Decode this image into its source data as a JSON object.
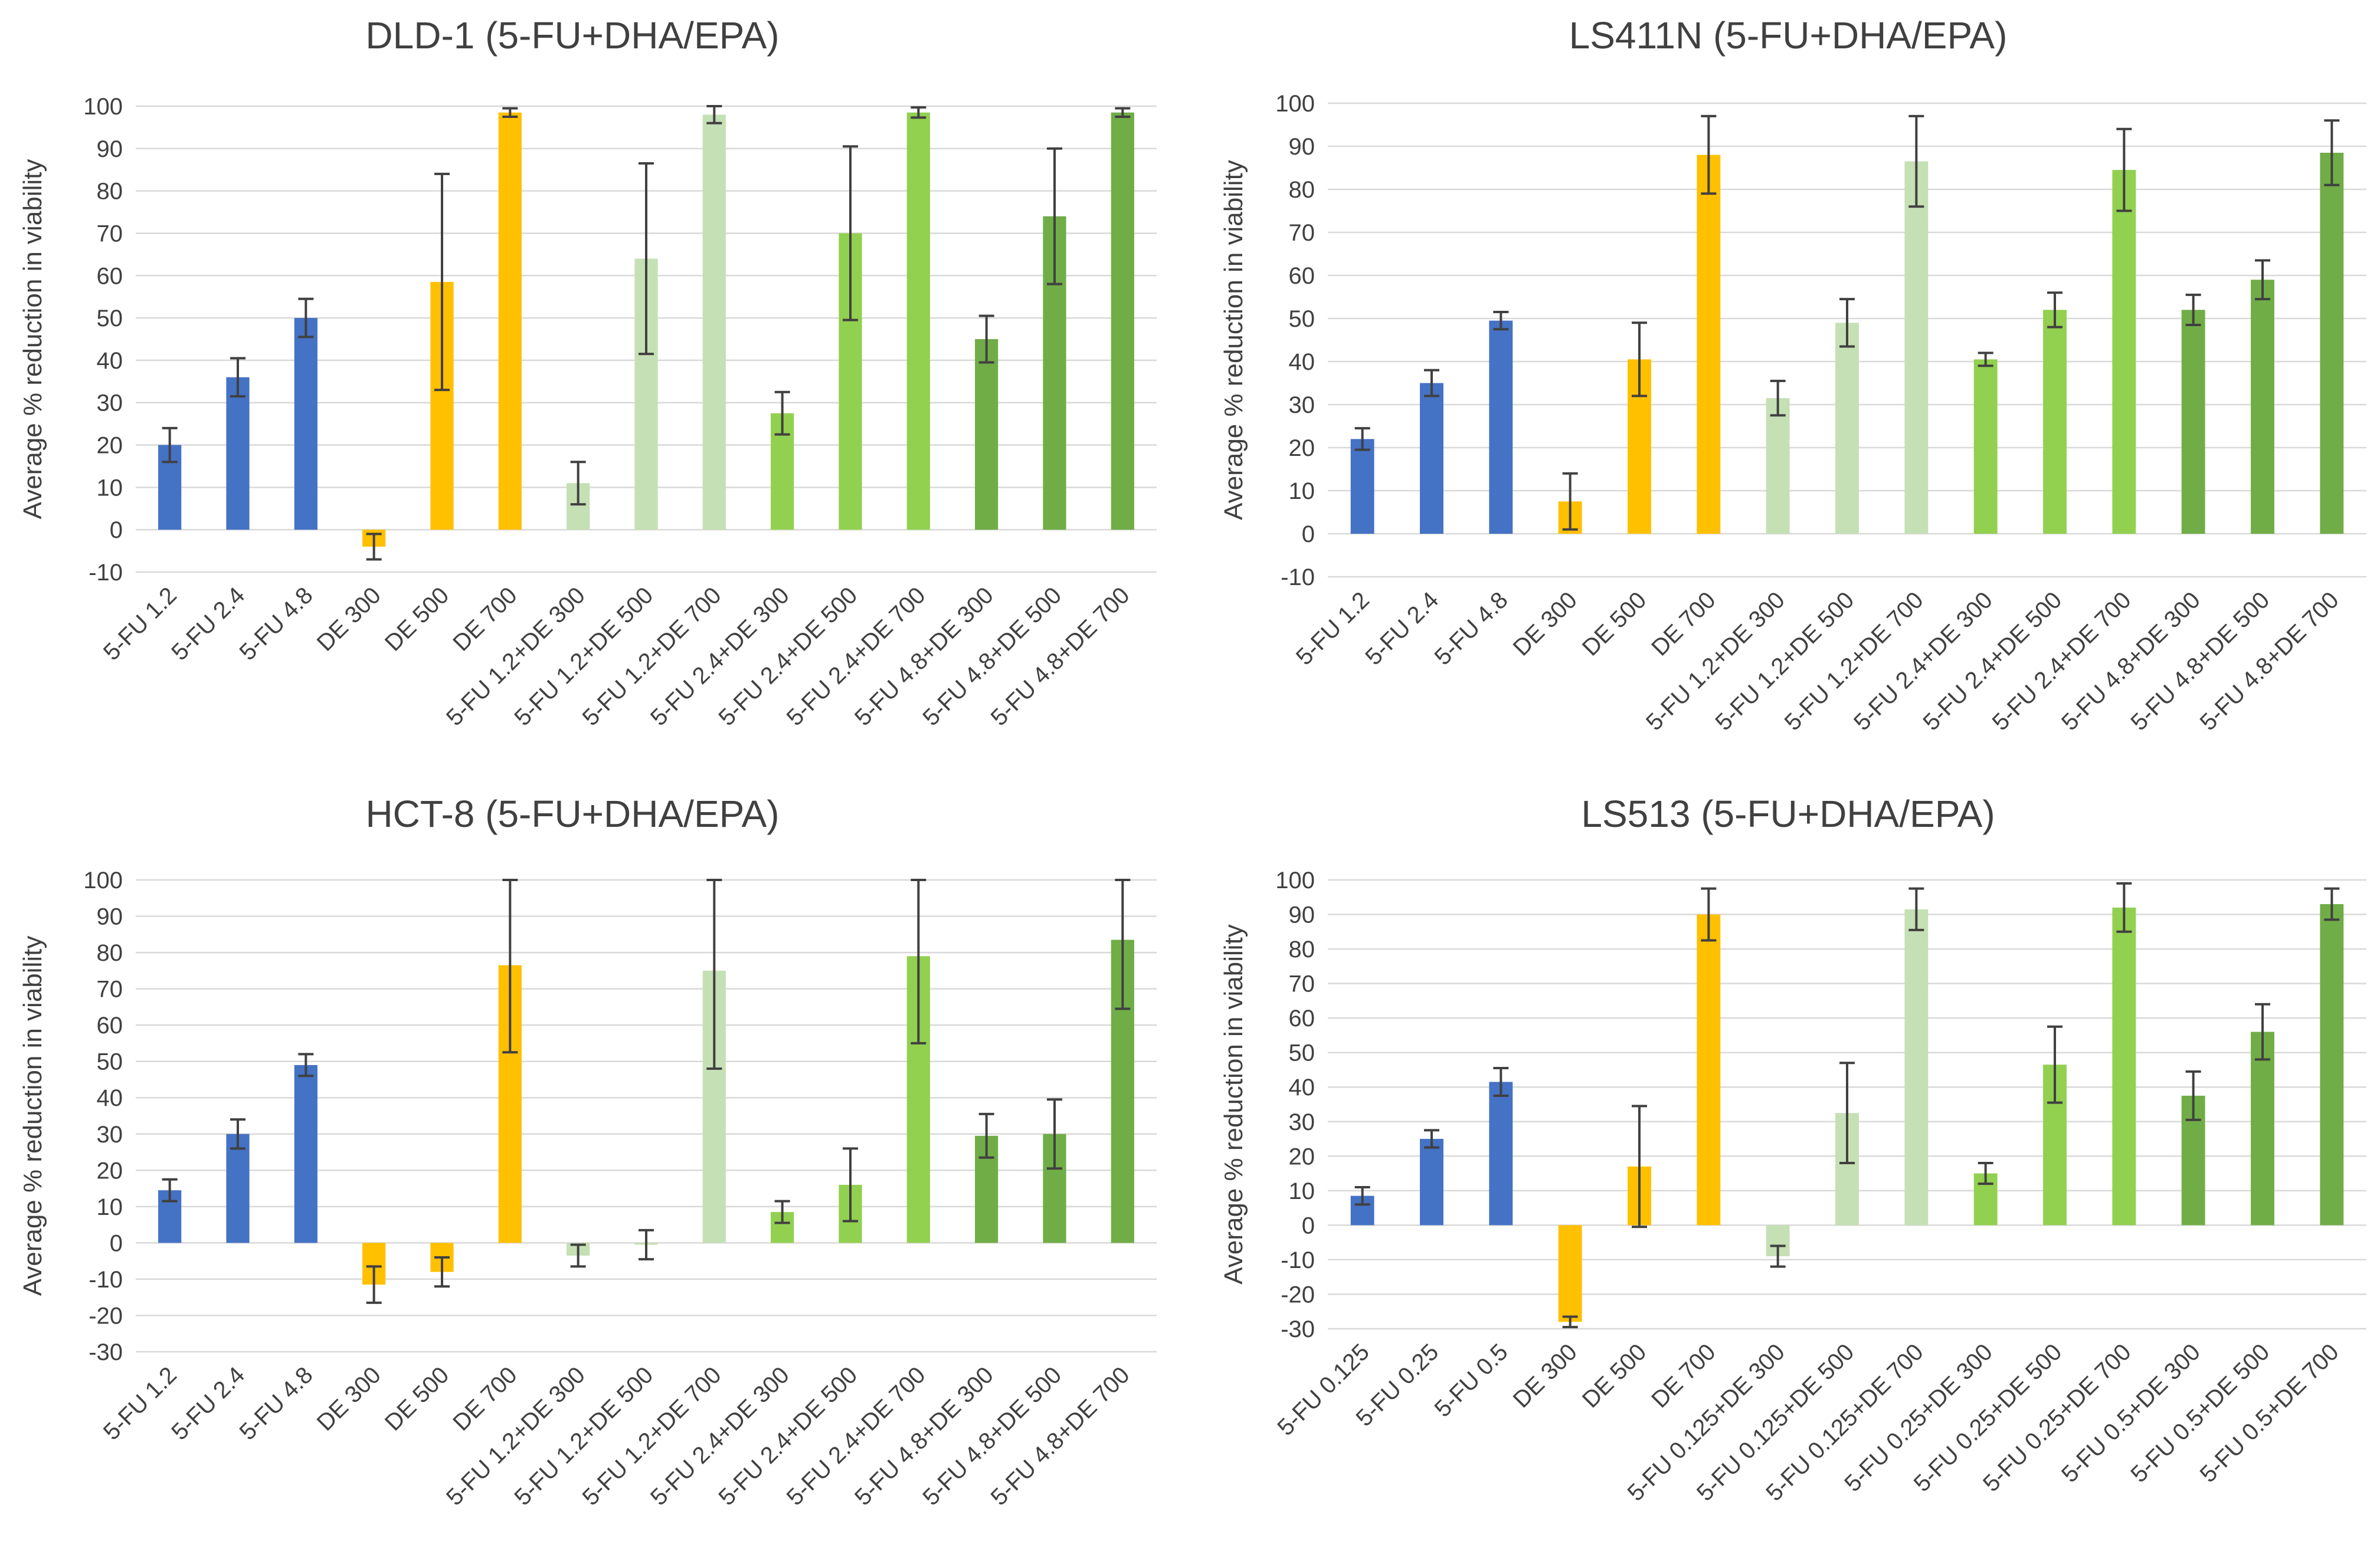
{
  "colors": {
    "blue": "#4472c4",
    "orange": "#ffc000",
    "lightgreen": "#c5e0b4",
    "green": "#92d050",
    "darkgreen": "#70ad47"
  },
  "chart_data": [
    {
      "type": "bar",
      "title": "DLD-1 (5-FU+DHA/EPA)",
      "ylabel": "Average % reduction in viability",
      "xlabel": "",
      "ylim": [
        -10,
        100
      ],
      "yticks": [
        -10,
        0,
        10,
        20,
        30,
        40,
        50,
        60,
        70,
        80,
        90,
        100
      ],
      "categories": [
        "5-FU 1.2",
        "5-FU 2.4",
        "5-FU 4.8",
        "DE 300",
        "DE 500",
        "DE 700",
        "5-FU 1.2+DE 300",
        "5-FU 1.2+DE 500",
        "5-FU 1.2+DE 700",
        "5-FU 2.4+DE 300",
        "5-FU 2.4+DE 500",
        "5-FU 2.4+DE 700",
        "5-FU 4.8+DE 300",
        "5-FU 4.8+DE 500",
        "5-FU 4.8+DE 700"
      ],
      "values": [
        20,
        36,
        50,
        -4,
        58.5,
        98.5,
        11,
        64,
        98,
        27.5,
        70,
        98.5,
        45,
        74,
        98.5
      ],
      "errors": [
        4,
        4.5,
        4.5,
        3,
        25.5,
        1,
        5,
        22.5,
        2,
        5,
        20.5,
        1.2,
        5.5,
        16,
        1
      ],
      "bar_colors": [
        "blue",
        "blue",
        "blue",
        "orange",
        "orange",
        "orange",
        "lightgreen",
        "lightgreen",
        "lightgreen",
        "green",
        "green",
        "green",
        "darkgreen",
        "darkgreen",
        "darkgreen"
      ]
    },
    {
      "type": "bar",
      "title": "LS411N (5-FU+DHA/EPA)",
      "ylabel": "Average % reduction in viability",
      "xlabel": "",
      "ylim": [
        -10,
        100
      ],
      "yticks": [
        -10,
        0,
        10,
        20,
        30,
        40,
        50,
        60,
        70,
        80,
        90,
        100
      ],
      "categories": [
        "5-FU 1.2",
        "5-FU 2.4",
        "5-FU 4.8",
        "DE 300",
        "DE 500",
        "DE 700",
        "5-FU 1.2+DE 300",
        "5-FU 1.2+DE 500",
        "5-FU 1.2+DE 700",
        "5-FU 2.4+DE 300",
        "5-FU 2.4+DE 500",
        "5-FU 2.4+DE 700",
        "5-FU 4.8+DE 300",
        "5-FU 4.8+DE 500",
        "5-FU 4.8+DE 700"
      ],
      "values": [
        22,
        35,
        49.5,
        7.5,
        40.5,
        88,
        31.5,
        49,
        86.5,
        40.5,
        52,
        84.5,
        52,
        59,
        88.5
      ],
      "errors": [
        2.5,
        3,
        2,
        6.5,
        8.5,
        9,
        4,
        5.5,
        10.5,
        1.5,
        4,
        9.5,
        3.5,
        4.5,
        7.5
      ],
      "bar_colors": [
        "blue",
        "blue",
        "blue",
        "orange",
        "orange",
        "orange",
        "lightgreen",
        "lightgreen",
        "lightgreen",
        "green",
        "green",
        "green",
        "darkgreen",
        "darkgreen",
        "darkgreen"
      ]
    },
    {
      "type": "bar",
      "title": "HCT-8 (5-FU+DHA/EPA)",
      "ylabel": "Average % reduction in viability",
      "xlabel": "",
      "ylim": [
        -30,
        100
      ],
      "yticks": [
        -30,
        -20,
        -10,
        0,
        10,
        20,
        30,
        40,
        50,
        60,
        70,
        80,
        90,
        100
      ],
      "categories": [
        "5-FU 1.2",
        "5-FU 2.4",
        "5-FU 4.8",
        "DE 300",
        "DE 500",
        "DE 700",
        "5-FU 1.2+DE 300",
        "5-FU 1.2+DE 500",
        "5-FU 1.2+DE 700",
        "5-FU 2.4+DE 300",
        "5-FU 2.4+DE 500",
        "5-FU 2.4+DE 700",
        "5-FU 4.8+DE 300",
        "5-FU 4.8+DE 500",
        "5-FU 4.8+DE 700"
      ],
      "values": [
        14.5,
        30,
        49,
        -11.5,
        -8,
        76.5,
        -3.5,
        -0.5,
        75,
        8.5,
        16,
        79,
        29.5,
        30,
        83.5
      ],
      "errors": [
        3,
        4,
        3,
        5,
        4,
        24,
        3,
        4,
        27,
        3,
        10,
        24,
        6,
        9.5,
        19
      ],
      "bar_colors": [
        "blue",
        "blue",
        "blue",
        "orange",
        "orange",
        "orange",
        "lightgreen",
        "lightgreen",
        "lightgreen",
        "green",
        "green",
        "green",
        "darkgreen",
        "darkgreen",
        "darkgreen"
      ]
    },
    {
      "type": "bar",
      "title": "LS513 (5-FU+DHA/EPA)",
      "ylabel": "Average % reduction in viability",
      "xlabel": "",
      "ylim": [
        -30,
        100
      ],
      "yticks": [
        -30,
        -20,
        -10,
        0,
        10,
        20,
        30,
        40,
        50,
        60,
        70,
        80,
        90,
        100
      ],
      "categories": [
        "5-FU 0.125",
        "5-FU 0.25",
        "5-FU 0.5",
        "DE 300",
        "DE 500",
        "DE 700",
        "5-FU 0.125+DE 300",
        "5-FU 0.125+DE 500",
        "5-FU 0.125+DE 700",
        "5-FU 0.25+DE 300",
        "5-FU 0.25+DE 500",
        "5-FU 0.25+DE 700",
        "5-FU 0.5+DE 300",
        "5-FU 0.5+DE 500",
        "5-FU 0.5+DE 700"
      ],
      "values": [
        8.5,
        25,
        41.5,
        -28,
        17,
        90,
        -9,
        32.5,
        91.5,
        15,
        46.5,
        92,
        37.5,
        56,
        93
      ],
      "errors": [
        2.5,
        2.5,
        4,
        1.5,
        17.5,
        7.5,
        3,
        14.5,
        6,
        3,
        11,
        7,
        7,
        8,
        4.5
      ],
      "bar_colors": [
        "blue",
        "blue",
        "blue",
        "orange",
        "orange",
        "orange",
        "lightgreen",
        "lightgreen",
        "lightgreen",
        "green",
        "green",
        "green",
        "darkgreen",
        "darkgreen",
        "darkgreen"
      ]
    }
  ]
}
